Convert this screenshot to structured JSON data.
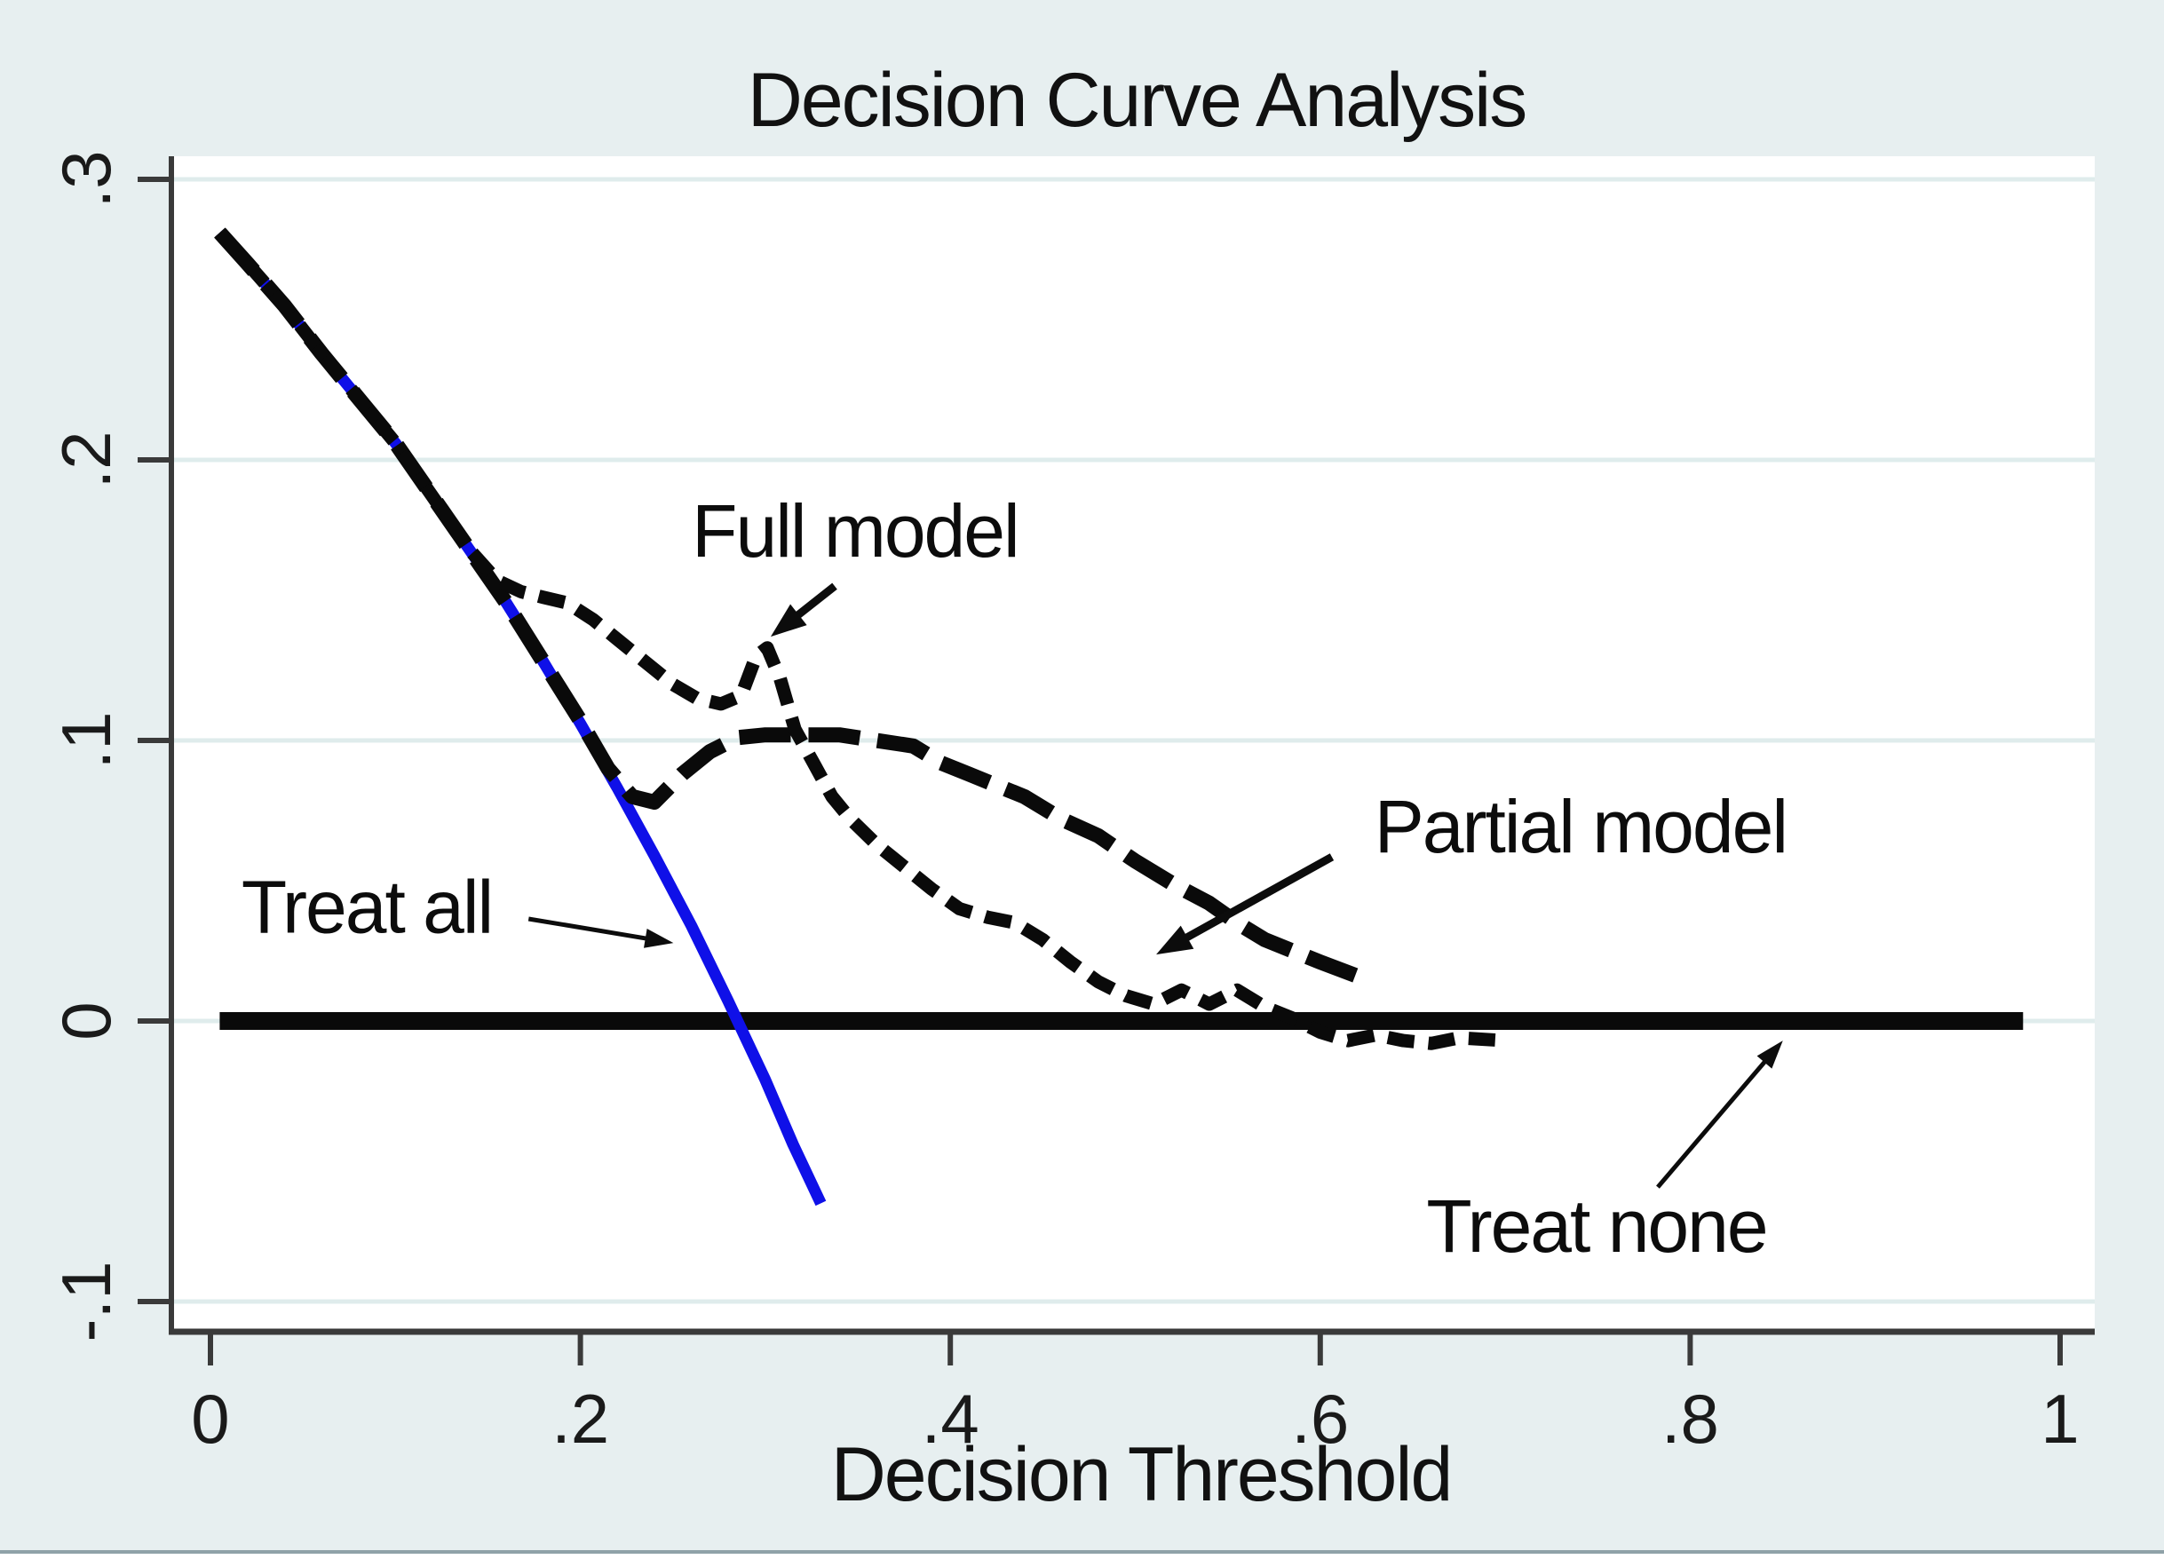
{
  "figure": {
    "background": "#e7eff0",
    "plot_background": "#ffffff",
    "grid_color": "#dfecec",
    "axis_color": "#3a3a3a",
    "text_color": "#111111",
    "bottom_rule_color": "#8fa2a8"
  },
  "chart_data": {
    "type": "line",
    "title": "Decision Curve Analysis",
    "xlabel": "Decision Threshold",
    "ylabel": "",
    "xlim": [
      -0.021,
      1.019
    ],
    "ylim": [
      -0.111,
      0.308
    ],
    "grid": "horizontal",
    "legend_position": "none",
    "x_ticks": [
      {
        "v": 0.0,
        "label": "0"
      },
      {
        "v": 0.2,
        "label": ".2"
      },
      {
        "v": 0.4,
        "label": ".4"
      },
      {
        "v": 0.6,
        "label": ".6"
      },
      {
        "v": 0.8,
        "label": ".8"
      },
      {
        "v": 1.0,
        "label": "1"
      }
    ],
    "y_ticks": [
      {
        "v": 0.3,
        "label": ".3"
      },
      {
        "v": 0.2,
        "label": ".2"
      },
      {
        "v": 0.1,
        "label": ".1"
      },
      {
        "v": 0.0,
        "label": "0"
      },
      {
        "v": -0.1,
        "label": "-.1"
      }
    ],
    "series": [
      {
        "name": "Treat none",
        "slug": "treat-none",
        "color": "#0a0a0a",
        "style": "solid",
        "width": 20,
        "points": [
          [
            0.005,
            0.0
          ],
          [
            0.98,
            0.0
          ]
        ]
      },
      {
        "name": "Treat all",
        "slug": "treat-all",
        "color": "#0f10e8",
        "style": "solid",
        "width": 13,
        "points": [
          [
            0.005,
            0.281
          ],
          [
            0.02,
            0.27
          ],
          [
            0.04,
            0.255
          ],
          [
            0.06,
            0.238
          ],
          [
            0.08,
            0.222
          ],
          [
            0.1,
            0.206
          ],
          [
            0.12,
            0.187
          ],
          [
            0.14,
            0.168
          ],
          [
            0.16,
            0.149
          ],
          [
            0.18,
            0.128
          ],
          [
            0.2,
            0.106
          ],
          [
            0.22,
            0.083
          ],
          [
            0.24,
            0.059
          ],
          [
            0.26,
            0.034
          ],
          [
            0.28,
            0.007
          ],
          [
            0.3,
            -0.021
          ],
          [
            0.315,
            -0.044
          ],
          [
            0.33,
            -0.065
          ]
        ]
      },
      {
        "name": "Partial model",
        "slug": "partial-model",
        "color": "#0a0a0a",
        "style": "dash-long",
        "dash": [
          58,
          20
        ],
        "width": 17,
        "points": [
          [
            0.005,
            0.281
          ],
          [
            0.02,
            0.27
          ],
          [
            0.04,
            0.255
          ],
          [
            0.06,
            0.238
          ],
          [
            0.08,
            0.222
          ],
          [
            0.1,
            0.206
          ],
          [
            0.12,
            0.187
          ],
          [
            0.14,
            0.168
          ],
          [
            0.16,
            0.149
          ],
          [
            0.18,
            0.128
          ],
          [
            0.2,
            0.107
          ],
          [
            0.215,
            0.09
          ],
          [
            0.228,
            0.08
          ],
          [
            0.24,
            0.078
          ],
          [
            0.255,
            0.088
          ],
          [
            0.27,
            0.096
          ],
          [
            0.285,
            0.101
          ],
          [
            0.3,
            0.102
          ],
          [
            0.32,
            0.102
          ],
          [
            0.34,
            0.102
          ],
          [
            0.36,
            0.1
          ],
          [
            0.38,
            0.098
          ],
          [
            0.395,
            0.092
          ],
          [
            0.41,
            0.088
          ],
          [
            0.425,
            0.084
          ],
          [
            0.44,
            0.08
          ],
          [
            0.46,
            0.072
          ],
          [
            0.48,
            0.066
          ],
          [
            0.5,
            0.057
          ],
          [
            0.52,
            0.049
          ],
          [
            0.54,
            0.042
          ],
          [
            0.555,
            0.035
          ],
          [
            0.57,
            0.029
          ],
          [
            0.585,
            0.025
          ],
          [
            0.6,
            0.021
          ],
          [
            0.62,
            0.016
          ]
        ]
      },
      {
        "name": "Full model",
        "slug": "full-model",
        "color": "#0a0a0a",
        "style": "dash-short",
        "dash": [
          30,
          16
        ],
        "width": 15,
        "points": [
          [
            0.005,
            0.281
          ],
          [
            0.02,
            0.27
          ],
          [
            0.04,
            0.255
          ],
          [
            0.06,
            0.238
          ],
          [
            0.08,
            0.222
          ],
          [
            0.1,
            0.206
          ],
          [
            0.12,
            0.187
          ],
          [
            0.14,
            0.168
          ],
          [
            0.155,
            0.157
          ],
          [
            0.168,
            0.153
          ],
          [
            0.18,
            0.151
          ],
          [
            0.193,
            0.149
          ],
          [
            0.207,
            0.143
          ],
          [
            0.22,
            0.136
          ],
          [
            0.235,
            0.128
          ],
          [
            0.25,
            0.12
          ],
          [
            0.263,
            0.115
          ],
          [
            0.276,
            0.113
          ],
          [
            0.287,
            0.116
          ],
          [
            0.295,
            0.13
          ],
          [
            0.301,
            0.133
          ],
          [
            0.308,
            0.122
          ],
          [
            0.316,
            0.104
          ],
          [
            0.326,
            0.092
          ],
          [
            0.336,
            0.08
          ],
          [
            0.346,
            0.072
          ],
          [
            0.36,
            0.063
          ],
          [
            0.375,
            0.055
          ],
          [
            0.39,
            0.047
          ],
          [
            0.405,
            0.04
          ],
          [
            0.42,
            0.037
          ],
          [
            0.435,
            0.035
          ],
          [
            0.45,
            0.029
          ],
          [
            0.465,
            0.021
          ],
          [
            0.48,
            0.014
          ],
          [
            0.495,
            0.009
          ],
          [
            0.51,
            0.006
          ],
          [
            0.525,
            0.011
          ],
          [
            0.54,
            0.006
          ],
          [
            0.555,
            0.011
          ],
          [
            0.57,
            0.005
          ],
          [
            0.585,
            0.001
          ],
          [
            0.6,
            -0.004
          ],
          [
            0.615,
            -0.007
          ],
          [
            0.63,
            -0.005
          ],
          [
            0.645,
            -0.007
          ],
          [
            0.66,
            -0.008
          ],
          [
            0.675,
            -0.006
          ],
          [
            0.7,
            -0.007
          ]
        ]
      }
    ],
    "annotations": [
      {
        "text": "Treat all",
        "slug": "treat-all",
        "tx": 0.0845,
        "tv": 0.041,
        "arrow": [
          [
            0.172,
            0.0364
          ],
          [
            0.2503,
            0.0278
          ]
        ],
        "weight": "thin"
      },
      {
        "text": "Full model",
        "slug": "full-model",
        "tx": 0.3485,
        "tv": 0.175,
        "arrow": [
          [
            0.3375,
            0.155
          ],
          [
            0.3029,
            0.137
          ]
        ],
        "weight": "bold"
      },
      {
        "text": "Partial model",
        "slug": "partial-model",
        "tx": 0.7407,
        "tv": 0.0696,
        "arrow": [
          [
            0.6063,
            0.0585
          ],
          [
            0.5113,
            0.0237
          ]
        ],
        "weight": "bold"
      },
      {
        "text": "Treat none",
        "slug": "treat-none",
        "tx": 0.7494,
        "tv": -0.0728,
        "arrow": [
          [
            0.7825,
            -0.0592
          ],
          [
            0.8501,
            -0.007
          ]
        ],
        "weight": "thin"
      }
    ]
  }
}
